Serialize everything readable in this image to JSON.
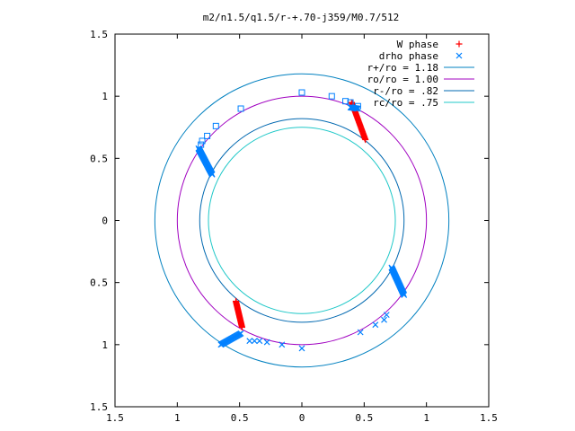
{
  "chart_data": {
    "type": "scatter",
    "title": "m2/n1.5/q1.5/r-+.70-j359/M0.7/512",
    "xlabel": "",
    "ylabel": "",
    "xlim": [
      -1.5,
      1.5
    ],
    "ylim": [
      -1.5,
      1.5
    ],
    "x_tick_labels": [
      "1.5",
      "1",
      "0.5",
      "0",
      "0.5",
      "1",
      "1.5"
    ],
    "y_tick_labels": [
      "1.5",
      "1",
      "0.5",
      "0",
      "0.5",
      "1",
      "1.5"
    ],
    "tick_values": [
      -1.5,
      -1,
      -0.5,
      0,
      0.5,
      1,
      1.5
    ],
    "grid": false,
    "legend_position": "top-right",
    "series": [
      {
        "name": "W phase",
        "marker": "plus",
        "color": "#ff0000",
        "segments": [
          {
            "from": [
              0.4,
              0.95
            ],
            "to": [
              0.51,
              0.65
            ],
            "n": 46
          },
          {
            "from": [
              -0.53,
              -0.65
            ],
            "to": [
              -0.48,
              -0.86
            ],
            "n": 36
          }
        ]
      },
      {
        "name": "drho phase",
        "marker": "cross",
        "color": "#0080ff",
        "segments": [
          {
            "from": [
              -0.83,
              0.58
            ],
            "to": [
              -0.72,
              0.37
            ],
            "n": 34
          },
          {
            "from": [
              0.39,
              0.91
            ],
            "to": [
              0.45,
              0.9
            ],
            "n": 10
          },
          {
            "from": [
              0.72,
              -0.38
            ],
            "to": [
              0.82,
              -0.6
            ],
            "n": 34
          },
          {
            "from": [
              -0.65,
              -1.0
            ],
            "to": [
              -0.49,
              -0.91
            ],
            "n": 24
          }
        ],
        "points": [
          [
            0.68,
            -0.76
          ],
          [
            0.66,
            -0.8
          ],
          [
            0.59,
            -0.84
          ],
          [
            0.47,
            -0.9
          ],
          [
            -0.42,
            -0.97
          ],
          [
            -0.38,
            -0.97
          ],
          [
            -0.34,
            -0.97
          ],
          [
            -0.28,
            -0.98
          ],
          [
            -0.16,
            -1.0
          ],
          [
            0.0,
            -1.03
          ]
        ]
      },
      {
        "name": "",
        "marker": "square",
        "color": "#0080ff",
        "points": [
          [
            -0.81,
            0.61
          ],
          [
            -0.8,
            0.64
          ],
          [
            -0.76,
            0.68
          ],
          [
            -0.69,
            0.76
          ],
          [
            -0.49,
            0.9
          ],
          [
            0.0,
            1.03
          ],
          [
            0.24,
            1.0
          ],
          [
            0.35,
            0.96
          ],
          [
            0.39,
            0.95
          ],
          [
            0.45,
            0.92
          ]
        ]
      },
      {
        "name": "r+/ro = 1.18",
        "type": "circle",
        "radius": 1.18,
        "color": "#0080c0"
      },
      {
        "name": "ro/ro = 1.00",
        "type": "circle",
        "radius": 1.0,
        "color": "#a000c0"
      },
      {
        "name": "r-/ro = .82",
        "type": "circle",
        "radius": 0.82,
        "color": "#0068b0"
      },
      {
        "name": "rc/ro = .75",
        "type": "circle",
        "radius": 0.75,
        "color": "#20c8c8"
      }
    ]
  }
}
